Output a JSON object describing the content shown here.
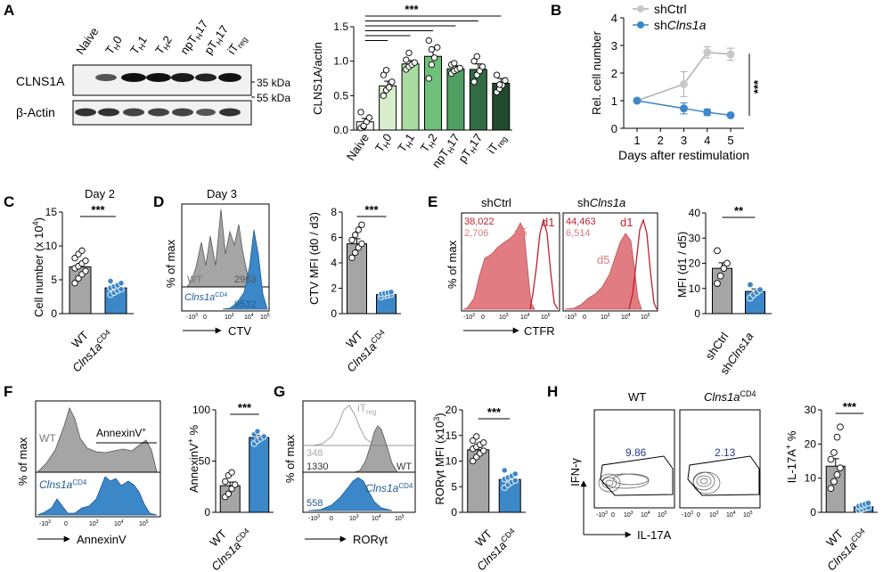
{
  "panels": {
    "A": {
      "letter": "A",
      "blot_lanes": [
        "Naive",
        "T",
        "T",
        "T",
        "npT",
        "pT",
        "iT"
      ],
      "lane_subs": [
        "",
        "H",
        "H",
        "H",
        "H",
        "H",
        "reg"
      ],
      "lane_suffix": [
        "",
        "0",
        "1",
        "2",
        "17",
        "17",
        ""
      ],
      "row1": "CLNS1A",
      "row2": "β-Actin",
      "kda1": "35 kDa",
      "kda2": "55 kDa",
      "sig": "***"
    },
    "B": {
      "letter": "B",
      "legend1": "shCtrl",
      "legend2_pre": "sh",
      "legend2_it": "Clns1a",
      "sig": "***"
    },
    "C": {
      "letter": "C",
      "title": "Day 2",
      "ylabel": "Cell number (x 10",
      "ylabel_sup": "4",
      "ylabel_end": ")",
      "sig": "***",
      "x1": "WT",
      "x2": "Clns1a",
      "x2_sup": "CD4"
    },
    "D": {
      "letter": "D",
      "title": "Day 3",
      "ylabel_hist": "% of max",
      "wt": "WT",
      "wt_val": "2963",
      "ko": "Clns1a",
      "ko_sup": "CD4",
      "ko_val": "9532",
      "xlabel": "CTV",
      "bar_ylabel": "CTV MFI (d0 / d3)",
      "sig": "***",
      "x1": "WT",
      "x2": "Clns1a",
      "x2_sup": "CD4"
    },
    "E": {
      "letter": "E",
      "h1_title": "shCtrl",
      "h2_title_pre": "sh",
      "h2_title_it": "Clns1a",
      "v1a": "38,022",
      "v1b": "2,706",
      "v2a": "44,463",
      "v2b": "6,514",
      "d1": "d1",
      "d5": "d5",
      "ylabel_hist": "% of max",
      "xlabel": "CTFR",
      "bar_ylabel": "MFI (d1 / d5)",
      "sig": "**",
      "x1": "shCtrl",
      "x2_pre": "sh",
      "x2_it": "Clns1a"
    },
    "F": {
      "letter": "F",
      "wt": "WT",
      "ko": "Clns1a",
      "ko_sup": "CD4",
      "gate": "AnnexinV",
      "gate_sup": "+",
      "ylabel_hist": "% of max",
      "xlabel": "AnnexinV",
      "bar_ylabel": "AnnexinV",
      "bar_ylabel_sup": "+",
      "bar_ylabel_end": " %",
      "sig": "***",
      "x1": "WT",
      "x2": "Clns1a",
      "x2_sup": "CD4"
    },
    "G": {
      "letter": "G",
      "itreg": "iT",
      "itreg_sub": "reg",
      "v348": "348",
      "v1330": "1330",
      "wt": "WT",
      "ko": "Clns1a",
      "ko_sup": "CD4",
      "v558": "558",
      "ylabel_hist": "% of max",
      "xlabel": "RORγt",
      "bar_ylabel": "RORγt MFI (x10",
      "bar_ylabel_sup": "3",
      "bar_ylabel_end": ")",
      "sig": "***",
      "x1": "WT",
      "x2": "Clns1a",
      "x2_sup": "CD4"
    },
    "H": {
      "letter": "H",
      "wt_title": "WT",
      "ko_title": "Clns1a",
      "ko_sup": "CD4",
      "g1": "9.86",
      "g2": "2.13",
      "yl": "IFN-γ",
      "xl": "IL-17A",
      "bar_ylabel": "IL-17A",
      "bar_ylabel_sup": "+",
      "bar_ylabel_end": " %",
      "sig": "***",
      "x1": "WT",
      "x2": "Clns1a",
      "x2_sup": "CD4"
    }
  },
  "flow_ticks": {
    "m3": "-10",
    "m3e": "3",
    "zero": "0",
    "p3": "10",
    "p3e": "3",
    "p4": "10",
    "p4e": "4",
    "p5": "10",
    "p5e": "5"
  },
  "colors": {
    "wt_gray": "#a5a5a5",
    "ko_blue": "#3c87c8",
    "red": "#c0202e",
    "pink": "#e07c82"
  },
  "chart_data": [
    {
      "id": "A",
      "type": "bar",
      "title": "",
      "xlabel": "",
      "ylabel": "CLNS1A/actin",
      "categories": [
        "Naive",
        "TH0",
        "TH1",
        "TH2",
        "npTH17",
        "pTH17",
        "iTreg"
      ],
      "values": [
        0.12,
        0.64,
        0.96,
        1.07,
        0.89,
        0.88,
        0.68
      ],
      "errors": [
        0.05,
        0.07,
        0.05,
        0.12,
        0.04,
        0.08,
        0.07
      ],
      "points": [
        [
          0.03,
          0.05,
          0.12,
          0.18,
          0.26,
          0.06
        ],
        [
          0.5,
          0.58,
          0.62,
          0.7,
          0.8,
          0.87
        ],
        [
          0.88,
          0.92,
          0.95,
          0.98,
          1.02,
          1.12
        ],
        [
          0.75,
          0.95,
          1.05,
          1.2,
          1.3,
          1.17
        ],
        [
          0.82,
          0.86,
          0.88,
          0.9,
          0.95,
          0.97
        ],
        [
          0.7,
          0.8,
          0.86,
          0.92,
          1.0,
          1.07
        ],
        [
          0.55,
          0.6,
          0.65,
          0.72,
          0.8,
          0.66
        ]
      ],
      "bar_colors": [
        "#ffffff",
        "#d8efcd",
        "#a8dca0",
        "#6fc07a",
        "#4f9e62",
        "#336b45",
        "#214a2e"
      ],
      "ylim": [
        0,
        1.5
      ],
      "yticks": [
        "0.0",
        "0.5",
        "1.0",
        "1.5"
      ],
      "significance": "***"
    },
    {
      "id": "B",
      "type": "line",
      "title": "",
      "xlabel": "Days after restimulation",
      "ylabel": "Rel. cell number",
      "x": [
        1,
        2,
        3,
        4,
        5
      ],
      "xticks": [
        "1",
        "2",
        "3",
        "4",
        "5"
      ],
      "series": [
        {
          "name": "shCtrl",
          "x": [
            1,
            3,
            4,
            5
          ],
          "values": [
            1.0,
            1.6,
            2.75,
            2.68
          ],
          "errors": [
            0.0,
            0.45,
            0.2,
            0.22
          ],
          "color": "#b0b0b0"
        },
        {
          "name": "shClns1a",
          "x": [
            1,
            3,
            4,
            5
          ],
          "values": [
            1.0,
            0.72,
            0.58,
            0.47
          ],
          "errors": [
            0.0,
            0.2,
            0.12,
            0.05
          ],
          "color": "#3c87c8"
        }
      ],
      "ylim": [
        0,
        4
      ],
      "yticks": [
        "0",
        "1",
        "2",
        "3",
        "4"
      ],
      "significance": "***"
    },
    {
      "id": "C",
      "type": "bar",
      "ylabel": "Cell number (x 10^4)",
      "categories": [
        "WT",
        "Clns1aCD4"
      ],
      "values": [
        6.9,
        3.8
      ],
      "errors": [
        0.5,
        0.25
      ],
      "points": [
        [
          4.5,
          5.2,
          5.8,
          6.3,
          6.7,
          7.0,
          7.4,
          7.8,
          8.2,
          8.8,
          9.3
        ],
        [
          2.8,
          3.1,
          3.4,
          3.6,
          3.8,
          4.0,
          4.2,
          4.5,
          4.8
        ]
      ],
      "ylim": [
        0,
        15
      ],
      "yticks": [
        "0",
        "5",
        "10",
        "15"
      ],
      "significance": "***"
    },
    {
      "id": "D",
      "type": "bar",
      "ylabel": "CTV MFI (d0 / d3)",
      "categories": [
        "WT",
        "Clns1aCD4"
      ],
      "values": [
        5.5,
        1.5
      ],
      "errors": [
        0.4,
        0.05
      ],
      "points": [
        [
          4.4,
          4.8,
          5.2,
          5.5,
          5.8,
          6.2,
          6.6,
          7.0
        ],
        [
          1.3,
          1.4,
          1.45,
          1.5,
          1.55,
          1.6,
          1.65,
          1.7
        ]
      ],
      "ylim": [
        0,
        8
      ],
      "yticks": [
        "0",
        "2",
        "4",
        "6",
        "8"
      ],
      "significance": "***"
    },
    {
      "id": "E",
      "type": "bar",
      "ylabel": "MFI (d1 / d5)",
      "categories": [
        "shCtrl",
        "shClns1a"
      ],
      "values": [
        18.0,
        8.8
      ],
      "errors": [
        2.2,
        1.0
      ],
      "points": [
        [
          12.0,
          15.0,
          18.0,
          20.0,
          25.0
        ],
        [
          6.2,
          7.5,
          8.5,
          9.5,
          11.5
        ]
      ],
      "ylim": [
        0,
        40
      ],
      "yticks": [
        "0",
        "10",
        "20",
        "30",
        "40"
      ],
      "significance": "**"
    },
    {
      "id": "F",
      "type": "bar",
      "ylabel": "AnnexinV+ %",
      "categories": [
        "WT",
        "Clns1aCD4"
      ],
      "values": [
        26.0,
        73.0
      ],
      "errors": [
        3.5,
        2.0
      ],
      "points": [
        [
          15.0,
          18.0,
          23.0,
          27.0,
          30.0,
          36.0,
          39.0
        ],
        [
          67.0,
          70.0,
          72.0,
          74.0,
          76.0,
          79.0
        ]
      ],
      "ylim": [
        0,
        100
      ],
      "yticks": [
        "0",
        "50",
        "100"
      ],
      "significance": "***"
    },
    {
      "id": "G",
      "type": "bar",
      "ylabel": "RORγt MFI (x10^3)",
      "categories": [
        "WT",
        "Clns1aCD4"
      ],
      "values": [
        12.2,
        6.4
      ],
      "errors": [
        0.45,
        0.4
      ],
      "points": [
        [
          10.0,
          10.8,
          11.5,
          12.0,
          12.4,
          12.8,
          13.2,
          13.6,
          14.0,
          14.8
        ],
        [
          4.8,
          5.4,
          5.9,
          6.2,
          6.5,
          6.8,
          7.1,
          7.5,
          8.2
        ]
      ],
      "ylim": [
        0,
        20
      ],
      "yticks": [
        "0",
        "5",
        "10",
        "15",
        "20"
      ],
      "significance": "***"
    },
    {
      "id": "H",
      "type": "bar",
      "ylabel": "IL-17A+ %",
      "categories": [
        "WT",
        "Clns1aCD4"
      ],
      "values": [
        13.5,
        1.6
      ],
      "errors": [
        2.2,
        0.3
      ],
      "points": [
        [
          7.0,
          9.0,
          11.0,
          13.0,
          15.5,
          17.5,
          22.0,
          25.0
        ],
        [
          0.6,
          0.9,
          1.2,
          1.5,
          1.8,
          2.1,
          2.4,
          2.7
        ]
      ],
      "ylim": [
        0,
        30
      ],
      "yticks": [
        "0",
        "10",
        "20",
        "30"
      ],
      "significance": "***"
    }
  ]
}
